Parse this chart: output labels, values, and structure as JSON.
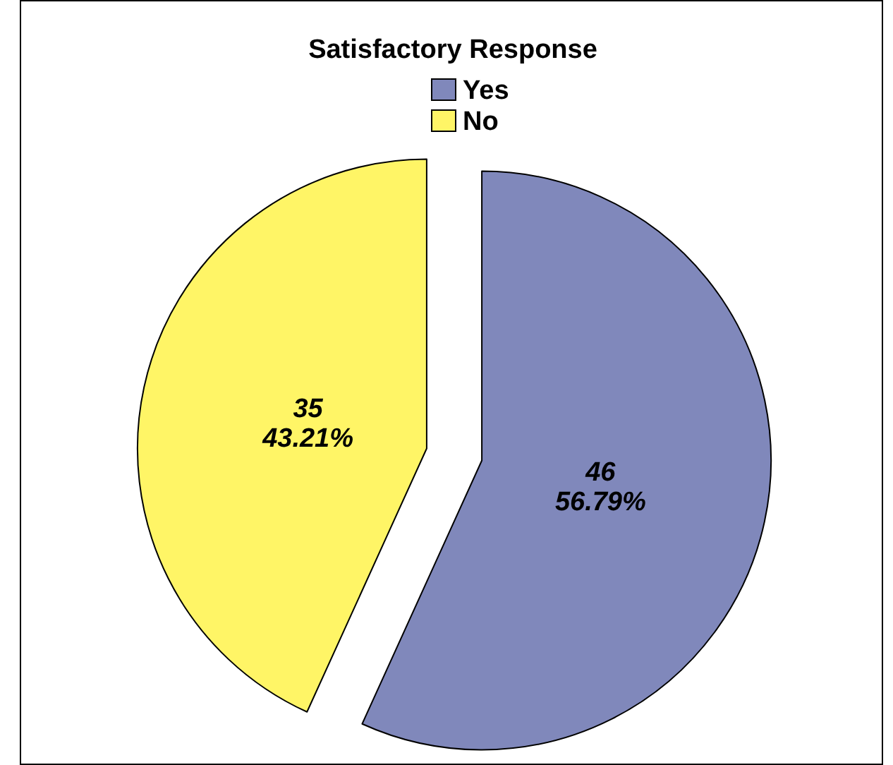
{
  "chart_data": {
    "type": "pie",
    "title": "Satisfactory Response",
    "categories": [
      "Yes",
      "No"
    ],
    "values": [
      46,
      35
    ],
    "colors": [
      "#8088bb",
      "#fff566"
    ],
    "value_labels": [
      "46\n56.79%",
      "35\n43.21%"
    ],
    "legend": "top"
  }
}
